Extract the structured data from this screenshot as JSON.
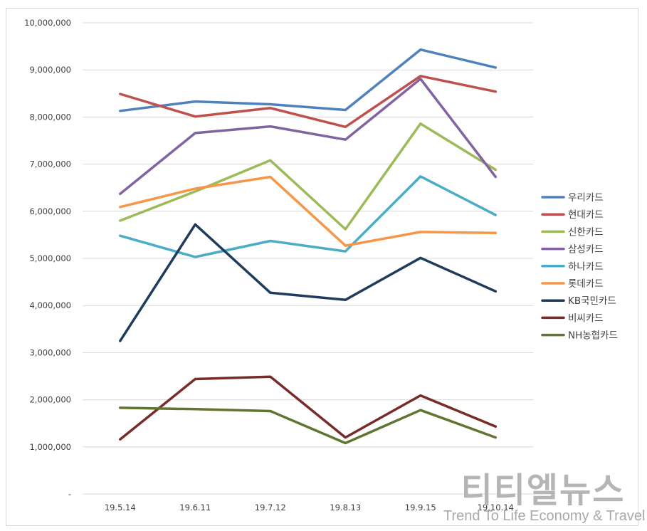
{
  "chart_data": {
    "type": "line",
    "categories": [
      "19.5.14",
      "19.6.11",
      "19.7.12",
      "19.8.13",
      "19.9.15",
      "19.10.14"
    ],
    "ylim": [
      0,
      10000000
    ],
    "yticks": [
      0,
      1000000,
      2000000,
      3000000,
      4000000,
      5000000,
      6000000,
      7000000,
      8000000,
      9000000,
      10000000
    ],
    "ytick_labels": [
      "-",
      "1,000,000",
      "2,000,000",
      "3,000,000",
      "4,000,000",
      "5,000,000",
      "6,000,000",
      "7,000,000",
      "8,000,000",
      "9,000,000",
      "10,000,000"
    ],
    "grid": true,
    "legend_position": "right",
    "series": [
      {
        "name": "우리카드",
        "color": "#4f81bd",
        "values": [
          8130000,
          8330000,
          8270000,
          8150000,
          9430000,
          9050000
        ]
      },
      {
        "name": "현대카드",
        "color": "#c0504d",
        "values": [
          8490000,
          8010000,
          8190000,
          7790000,
          8870000,
          8540000
        ]
      },
      {
        "name": "신한카드",
        "color": "#9bbb59",
        "values": [
          5800000,
          6420000,
          7080000,
          5620000,
          7860000,
          6880000
        ]
      },
      {
        "name": "삼성카드",
        "color": "#8064a2",
        "values": [
          6370000,
          7660000,
          7800000,
          7520000,
          8810000,
          6730000
        ]
      },
      {
        "name": "하나카드",
        "color": "#4bacc6",
        "values": [
          5480000,
          5030000,
          5370000,
          5150000,
          6740000,
          5920000
        ]
      },
      {
        "name": "롯데카드",
        "color": "#f79646",
        "values": [
          6090000,
          6480000,
          6730000,
          5270000,
          5560000,
          5540000
        ]
      },
      {
        "name": "KB국민카드",
        "color": "#1f3c5c",
        "values": [
          3250000,
          5720000,
          4270000,
          4120000,
          5010000,
          4300000
        ]
      },
      {
        "name": "비씨카드",
        "color": "#772c2a",
        "values": [
          1160000,
          2440000,
          2490000,
          1200000,
          2090000,
          1430000
        ]
      },
      {
        "name": "NH농협카드",
        "color": "#5f7530",
        "values": [
          1830000,
          1800000,
          1760000,
          1080000,
          1780000,
          1200000
        ]
      }
    ]
  },
  "watermark": {
    "title": "티티엘뉴스",
    "subtitle": "Trend To Life Economy & Travel"
  }
}
